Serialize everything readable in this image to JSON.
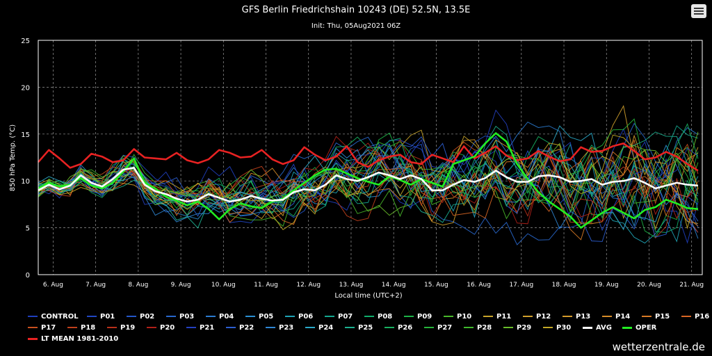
{
  "header": {
    "title": "GFS Berlin Friedrichshain 10243 (DE) 52.5N, 13.5E",
    "subtitle": "Init: Thu, 05Aug2021 06Z"
  },
  "menu_icon": "hamburger-menu-icon",
  "credit": "wetterzentrale.de",
  "chart_data": {
    "type": "line",
    "xlabel": "Local time (UTC+2)",
    "ylabel": "850 hPa Temp. (°C)",
    "ylim": [
      0,
      25
    ],
    "yticks": [
      0,
      5,
      10,
      15,
      20,
      25
    ],
    "xlim": [
      -0.35,
      15.25
    ],
    "xticks": [
      "6. Aug",
      "7. Aug",
      "8. Aug",
      "9. Aug",
      "10. Aug",
      "11. Aug",
      "12. Aug",
      "13. Aug",
      "14. Aug",
      "15. Aug",
      "16. Aug",
      "17. Aug",
      "18. Aug",
      "19. Aug",
      "20. Aug",
      "21. Aug"
    ],
    "grid": true,
    "legend_position": "bottom",
    "series": [
      {
        "name": "CONTROL",
        "color": "#1f3fbf"
      },
      {
        "name": "P01",
        "color": "#2147c4"
      },
      {
        "name": "P02",
        "color": "#2457c8"
      },
      {
        "name": "P03",
        "color": "#2867cc"
      },
      {
        "name": "P04",
        "color": "#2b7bd0"
      },
      {
        "name": "P05",
        "color": "#2a8fd2"
      },
      {
        "name": "P06",
        "color": "#1fa3b5"
      },
      {
        "name": "P07",
        "color": "#14a890"
      },
      {
        "name": "P08",
        "color": "#10ad6b"
      },
      {
        "name": "P09",
        "color": "#1db346"
      },
      {
        "name": "P10",
        "color": "#48b82a"
      },
      {
        "name": "P11",
        "color": "#c8a42a"
      },
      {
        "name": "P12",
        "color": "#d0a02c"
      },
      {
        "name": "P13",
        "color": "#d49a2a"
      },
      {
        "name": "P14",
        "color": "#d68c28"
      },
      {
        "name": "P15",
        "color": "#d87a26"
      },
      {
        "name": "P16",
        "color": "#d86624"
      },
      {
        "name": "P17",
        "color": "#c8501f"
      },
      {
        "name": "P18",
        "color": "#c0401c"
      },
      {
        "name": "P19",
        "color": "#b8301a"
      },
      {
        "name": "P20",
        "color": "#b02018"
      },
      {
        "name": "P21",
        "color": "#2440c0"
      },
      {
        "name": "P22",
        "color": "#2c5ed0"
      },
      {
        "name": "P23",
        "color": "#2f86d4"
      },
      {
        "name": "P24",
        "color": "#2aa8c8"
      },
      {
        "name": "P25",
        "color": "#1cb090"
      },
      {
        "name": "P26",
        "color": "#18b060"
      },
      {
        "name": "P27",
        "color": "#26b43a"
      },
      {
        "name": "P28",
        "color": "#3fb82c"
      },
      {
        "name": "P29",
        "color": "#68bc2a"
      },
      {
        "name": "P30",
        "color": "#c4a826"
      },
      {
        "name": "AVG",
        "color": "#ffffff",
        "values": [
          9.0,
          9.6,
          9.1,
          9.5,
          10.6,
          9.8,
          9.4,
          10.2,
          11.2,
          11.4,
          9.6,
          8.9,
          8.6,
          8.1,
          7.8,
          8.0,
          8.6,
          8.2,
          7.8,
          8.0,
          8.4,
          8.1,
          7.9,
          8.0,
          8.8,
          9.1,
          9.0,
          9.6,
          10.6,
          10.2,
          10.0,
          10.4,
          10.9,
          10.6,
          10.2,
          10.6,
          10.2,
          9.0,
          9.0,
          9.6,
          10.1,
          9.9,
          10.3,
          11.1,
          10.4,
          9.9,
          9.9,
          10.5,
          10.6,
          10.4,
          9.9,
          10.0,
          10.2,
          9.6,
          9.9,
          10.0,
          10.3,
          9.8,
          9.2,
          9.5,
          9.8,
          9.6,
          9.5
        ]
      },
      {
        "name": "OPER",
        "color": "#22ee22",
        "values": [
          9.2,
          9.8,
          9.4,
          9.6,
          10.3,
          9.5,
          9.2,
          9.8,
          11.0,
          12.4,
          9.8,
          9.2,
          8.3,
          7.9,
          7.4,
          7.8,
          7.0,
          5.9,
          7.0,
          7.6,
          7.3,
          7.1,
          7.8,
          8.1,
          9.0,
          9.8,
          10.6,
          11.2,
          11.3,
          10.8,
          10.3,
          9.9,
          9.6,
          10.5,
          10.1,
          9.6,
          10.2,
          9.8,
          9.4,
          11.8,
          12.2,
          12.6,
          14.0,
          15.1,
          14.2,
          11.8,
          10.2,
          8.8,
          7.8,
          7.0,
          6.2,
          5.0,
          5.8,
          6.6,
          7.2,
          6.6,
          6.0,
          6.9,
          7.2,
          8.0,
          7.6,
          7.1,
          7.0
        ]
      },
      {
        "name": "LT MEAN 1981-2010",
        "color": "#e82222",
        "values": [
          12.0,
          13.3,
          12.4,
          11.4,
          11.8,
          12.9,
          12.6,
          12.0,
          12.2,
          13.4,
          12.5,
          12.4,
          12.3,
          13.0,
          12.2,
          11.9,
          12.3,
          13.3,
          13.0,
          12.5,
          12.6,
          13.3,
          12.3,
          11.8,
          12.2,
          13.6,
          12.8,
          12.2,
          12.6,
          13.7,
          12.0,
          11.5,
          12.2,
          12.6,
          12.8,
          12.0,
          11.8,
          12.8,
          12.4,
          12.0,
          13.7,
          12.4,
          13.0,
          13.7,
          12.7,
          12.2,
          12.4,
          13.2,
          12.6,
          12.1,
          12.3,
          13.6,
          13.1,
          13.2,
          13.7,
          14.0,
          13.2,
          12.3,
          12.5,
          13.1,
          12.6,
          11.8,
          11.1
        ]
      }
    ]
  }
}
